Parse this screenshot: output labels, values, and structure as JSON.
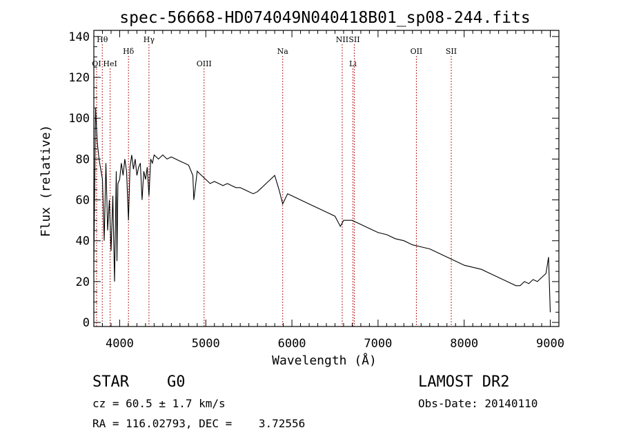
{
  "chart_data": {
    "type": "line",
    "title": "spec-56668-HD074049N040418B01_sp08-244.fits",
    "xlabel": "Wavelength (Å)",
    "ylabel": "Flux (relative)",
    "xlim": [
      3700,
      9100
    ],
    "ylim": [
      -2,
      143
    ],
    "x_ticks": [
      4000,
      5000,
      6000,
      7000,
      8000,
      9000
    ],
    "x_tick_labels": [
      "4000",
      "5000",
      "6000",
      "7000",
      "8000",
      "9000"
    ],
    "y_ticks": [
      0,
      20,
      40,
      60,
      80,
      100,
      120,
      140
    ],
    "y_tick_labels": [
      "0",
      "20",
      "40",
      "60",
      "80",
      "100",
      "120",
      "140"
    ],
    "grid": false,
    "line_color": "#000000",
    "marker_color": "#b22222",
    "lines": [
      {
        "label": "Hθ",
        "x": 3798,
        "row": 0
      },
      {
        "label": "Hγ",
        "x": 4340,
        "row": 0
      },
      {
        "label": "NII",
        "x": 6584,
        "row": 0
      },
      {
        "label": "SII",
        "x": 6724,
        "row": 0
      },
      {
        "label": "Hδ",
        "x": 4102,
        "row": 1
      },
      {
        "label": "Na",
        "x": 5893,
        "row": 1
      },
      {
        "label": "OII",
        "x": 7445,
        "row": 1
      },
      {
        "label": "SII",
        "x": 7850,
        "row": 1
      },
      {
        "label": "OI",
        "x": 3732,
        "row": 2
      },
      {
        "label": "HeI",
        "x": 3889,
        "row": 2
      },
      {
        "label": "OIII",
        "x": 4980,
        "row": 2
      },
      {
        "label": "Li",
        "x": 6708,
        "row": 2
      }
    ],
    "series": [
      {
        "x": [
          3700,
          3720,
          3740,
          3760,
          3780,
          3800,
          3820,
          3840,
          3860,
          3880,
          3900,
          3920,
          3940,
          3960,
          3968,
          3980,
          4000,
          4020,
          4040,
          4060,
          4080,
          4102,
          4120,
          4140,
          4160,
          4180,
          4200,
          4220,
          4240,
          4260,
          4280,
          4300,
          4320,
          4340,
          4360,
          4380,
          4400,
          4450,
          4500,
          4550,
          4600,
          4650,
          4700,
          4750,
          4800,
          4850,
          4861,
          4900,
          4950,
          5000,
          5050,
          5100,
          5150,
          5200,
          5250,
          5300,
          5350,
          5400,
          5450,
          5500,
          5550,
          5600,
          5650,
          5700,
          5750,
          5800,
          5850,
          5893,
          5950,
          6000,
          6100,
          6200,
          6300,
          6400,
          6500,
          6563,
          6600,
          6700,
          6800,
          6900,
          7000,
          7100,
          7200,
          7300,
          7400,
          7500,
          7600,
          7700,
          7800,
          7900,
          8000,
          8100,
          8200,
          8300,
          8400,
          8500,
          8600,
          8650,
          8700,
          8750,
          8800,
          8850,
          8900,
          8950,
          8980,
          9000
        ],
        "y": [
          30,
          105,
          88,
          80,
          75,
          70,
          40,
          78,
          45,
          60,
          35,
          62,
          20,
          74,
          30,
          68,
          70,
          78,
          72,
          80,
          74,
          50,
          76,
          82,
          75,
          80,
          72,
          76,
          78,
          60,
          74,
          70,
          76,
          62,
          80,
          78,
          82,
          80,
          82,
          80,
          81,
          80,
          79,
          78,
          77,
          72,
          60,
          74,
          72,
          70,
          68,
          69,
          68,
          67,
          68,
          67,
          66,
          66,
          65,
          64,
          63,
          64,
          66,
          68,
          70,
          72,
          65,
          58,
          63,
          62,
          60,
          58,
          56,
          54,
          52,
          47,
          50,
          50,
          48,
          46,
          44,
          43,
          41,
          40,
          38,
          37,
          36,
          34,
          32,
          30,
          28,
          27,
          26,
          24,
          22,
          20,
          18,
          18,
          20,
          19,
          21,
          20,
          22,
          24,
          32,
          5
        ]
      }
    ]
  },
  "info": {
    "object_type": "STAR",
    "subclass": "G0",
    "survey": "LAMOST DR2",
    "cz": "cz = 60.5 ± 1.7 km/s",
    "obs_date": "Obs-Date: 20140110",
    "radec": "RA = 116.02793, DEC =    3.72556"
  }
}
